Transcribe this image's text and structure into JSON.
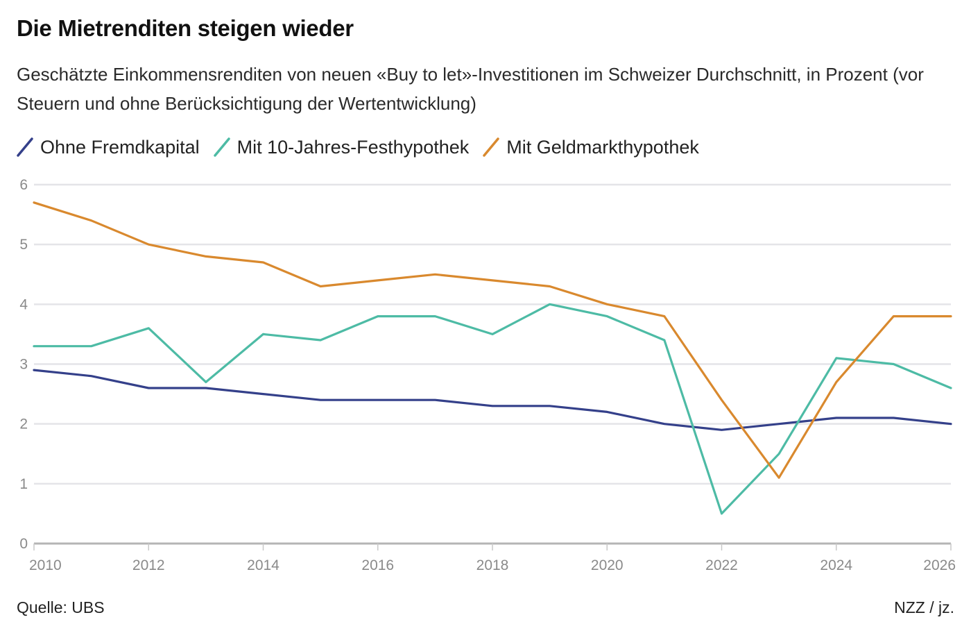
{
  "header": {
    "title": "Die Mietrenditen steigen wieder",
    "subtitle": "Geschätzte Einkommensrenditen von neuen «Buy to let»-Investitionen im Schweizer Durchschnitt, in Prozent (vor Steuern und ohne Berücksichtigung der Wertentwicklung)"
  },
  "footer": {
    "source": "Quelle: UBS",
    "credit": "NZZ / jz."
  },
  "chart_data": {
    "type": "line",
    "title": "Die Mietrenditen steigen wieder",
    "subtitle": "Geschätzte Einkommensrenditen von neuen «Buy to let»-Investitionen im Schweizer Durchschnitt, in Prozent (vor Steuern und ohne Berücksichtigung der Wertentwicklung)",
    "xlabel": "",
    "ylabel": "",
    "x": [
      2010,
      2011,
      2012,
      2013,
      2014,
      2015,
      2016,
      2017,
      2018,
      2019,
      2020,
      2021,
      2022,
      2023,
      2024,
      2025,
      2026
    ],
    "xlim": [
      2010,
      2026
    ],
    "ylim": [
      0,
      6
    ],
    "x_ticks": [
      "2010",
      "2012",
      "2014",
      "2016",
      "2018",
      "2020",
      "2022",
      "2024",
      "2026"
    ],
    "y_ticks": [
      "0",
      "1",
      "2",
      "3",
      "4",
      "5",
      "6"
    ],
    "grid": true,
    "legend_position": "top-left",
    "series": [
      {
        "name": "Ohne Fremdkapital",
        "color": "#34408a",
        "values": [
          2.9,
          2.8,
          2.6,
          2.6,
          2.5,
          2.4,
          2.4,
          2.4,
          2.3,
          2.3,
          2.2,
          2.0,
          1.9,
          2.0,
          2.1,
          2.1,
          2.0
        ]
      },
      {
        "name": "Mit 10-Jahres-Festhypothek",
        "color": "#4dbba5",
        "values": [
          3.3,
          3.3,
          3.6,
          2.7,
          3.5,
          3.4,
          3.8,
          3.8,
          3.5,
          4.0,
          3.8,
          3.4,
          0.5,
          1.5,
          3.1,
          3.0,
          2.6
        ]
      },
      {
        "name": "Mit Geldmarkthypothek",
        "color": "#d9892e",
        "values": [
          5.7,
          5.4,
          5.0,
          4.8,
          4.7,
          4.3,
          4.4,
          4.5,
          4.4,
          4.3,
          4.0,
          3.8,
          2.4,
          1.1,
          2.7,
          3.8,
          3.8
        ]
      }
    ]
  }
}
